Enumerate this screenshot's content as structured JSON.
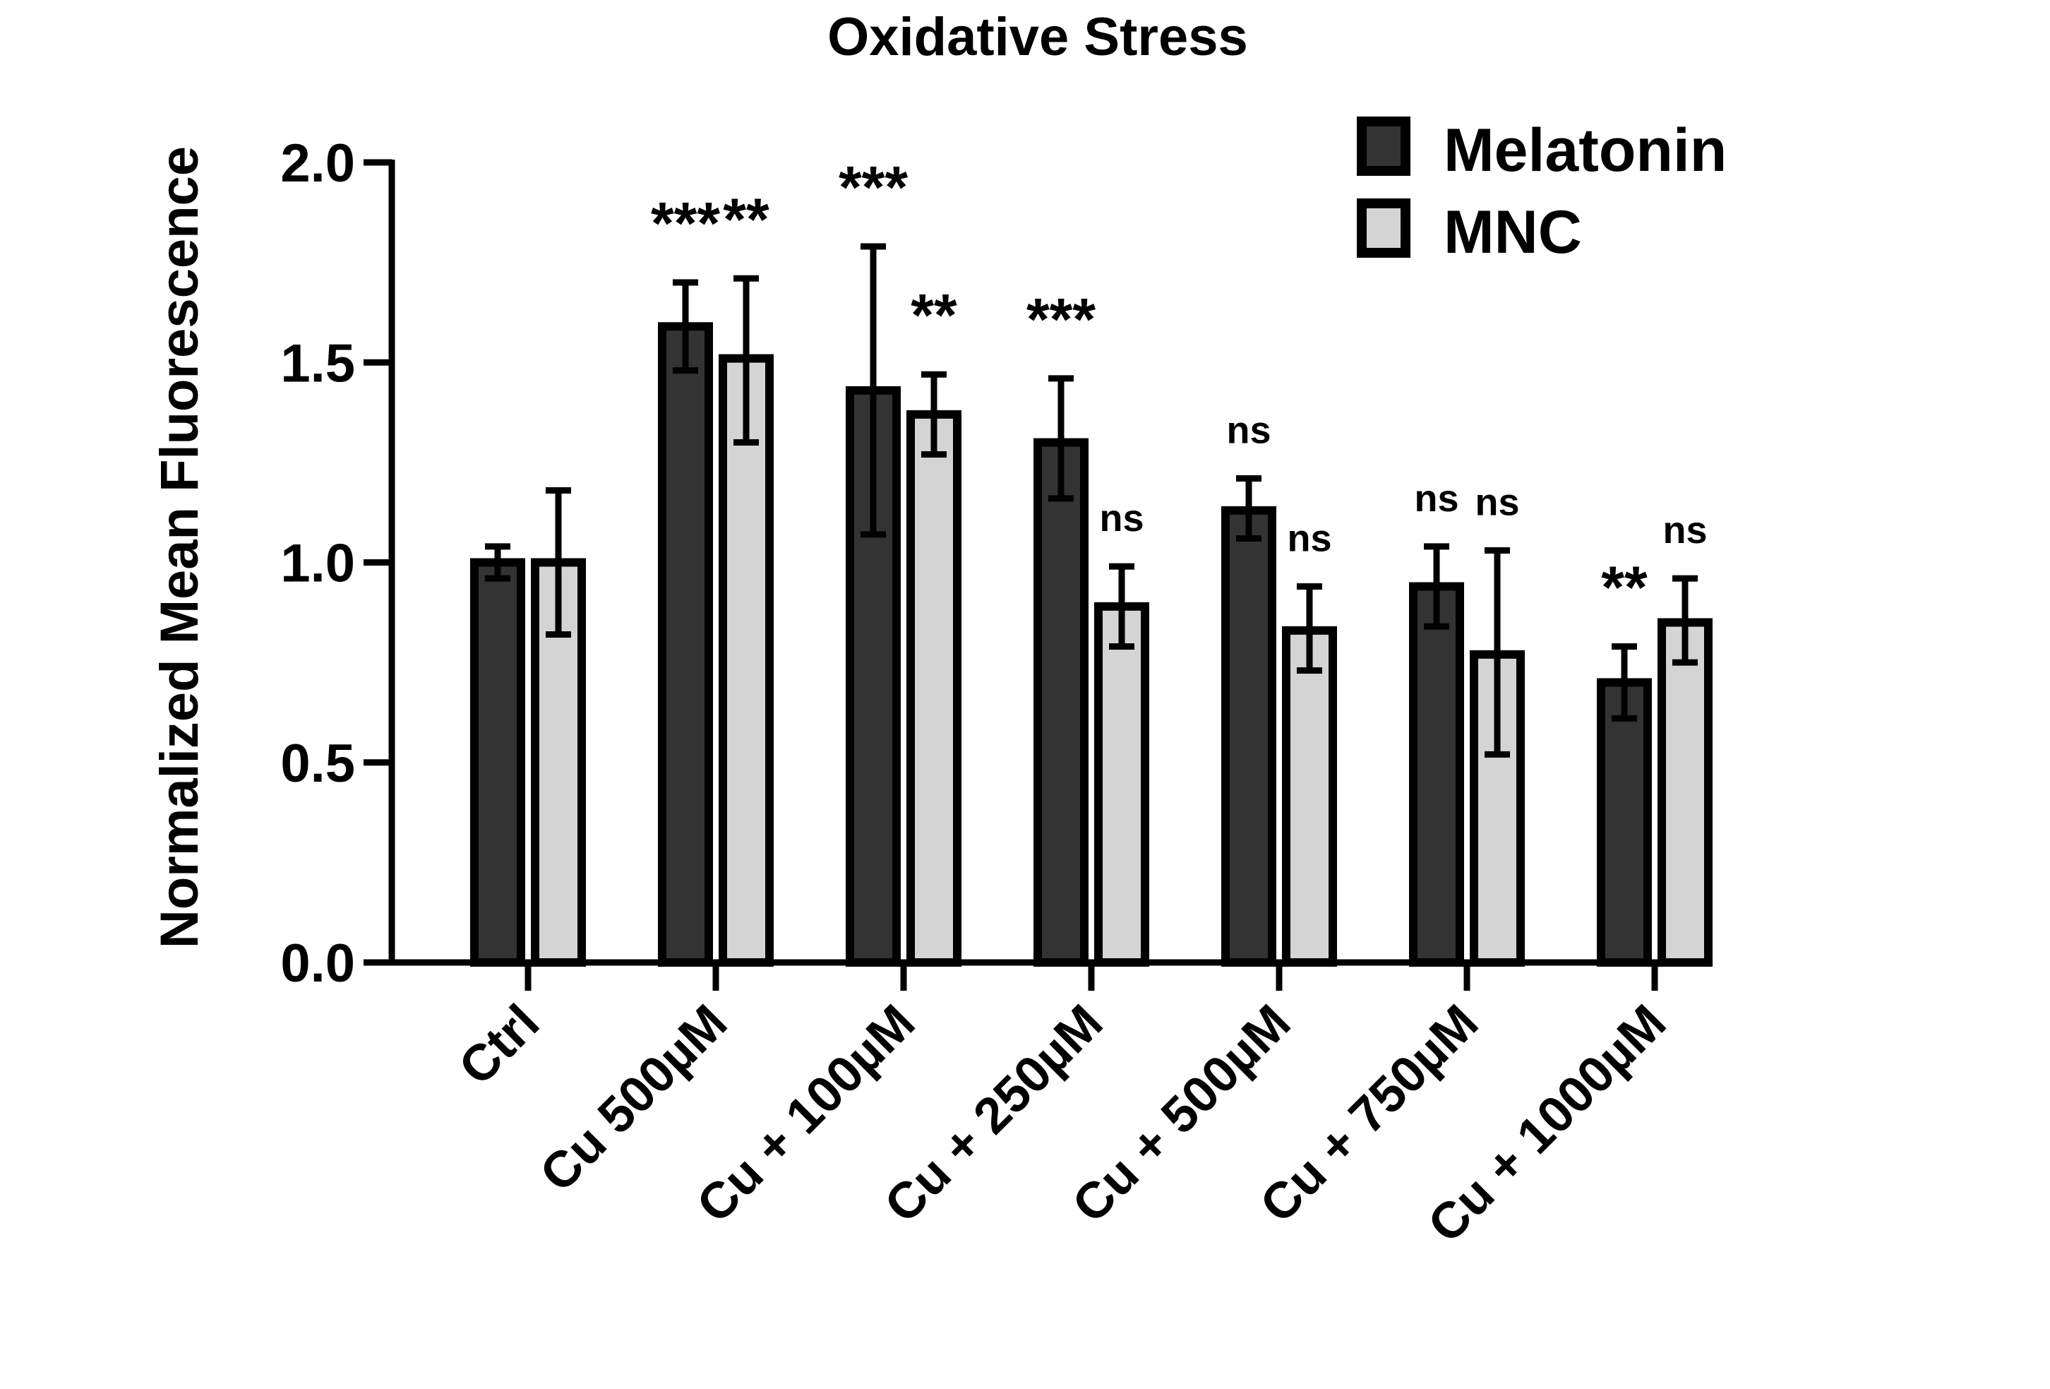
{
  "chart_data": {
    "type": "bar",
    "title": "Oxidative Stress",
    "xlabel": "",
    "ylabel": "Normalized Mean Fluorescence",
    "ylim": [
      0,
      2.0
    ],
    "yticks": [
      "0.0",
      "0.5",
      "1.0",
      "1.5",
      "2.0"
    ],
    "ytick_values": [
      0,
      0.5,
      1.0,
      1.5,
      2.0
    ],
    "grid": false,
    "legend_position": "top-right",
    "categories": [
      "Ctrl",
      "Cu 500µM",
      "Cu + 100µM",
      "Cu + 250µM",
      "Cu + 500µM",
      "Cu + 750µM",
      "Cu + 1000µM"
    ],
    "series": [
      {
        "name": "Melatonin",
        "color": "#333333",
        "values": [
          1.0,
          1.59,
          1.43,
          1.3,
          1.13,
          0.94,
          0.7
        ],
        "error_upper": [
          1.04,
          1.7,
          1.79,
          1.46,
          1.21,
          1.04,
          0.79
        ],
        "error_lower": [
          0.96,
          1.48,
          1.07,
          1.16,
          1.06,
          0.84,
          0.61
        ],
        "significance": [
          "",
          "***",
          "***",
          "***",
          "ns",
          "ns",
          "**"
        ]
      },
      {
        "name": "MNC",
        "color": "#d4d4d4",
        "values": [
          1.0,
          1.51,
          1.37,
          0.89,
          0.83,
          0.77,
          0.85
        ],
        "error_upper": [
          1.18,
          1.71,
          1.47,
          0.99,
          0.94,
          1.03,
          0.96
        ],
        "error_lower": [
          0.82,
          1.3,
          1.27,
          0.79,
          0.73,
          0.52,
          0.75
        ],
        "significance": [
          "",
          "**",
          "**",
          "ns",
          "ns",
          "ns",
          "ns"
        ]
      }
    ]
  }
}
